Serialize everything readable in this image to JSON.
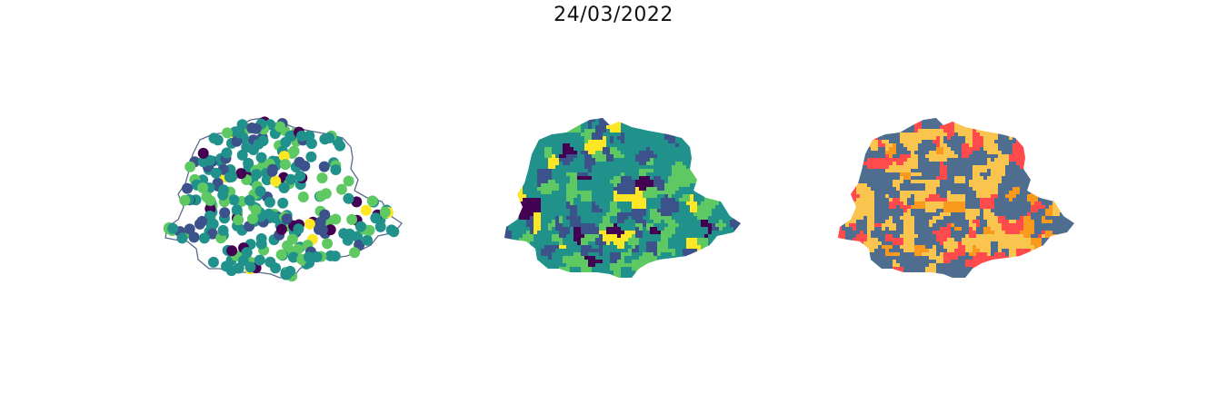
{
  "figure": {
    "title": "24/03/2022"
  },
  "colors": {
    "viridis": [
      "#440154",
      "#3b528b",
      "#21918c",
      "#5ec962",
      "#fde725"
    ],
    "outline": "#5a6a8a",
    "category_palette": [
      "#4f6d8f",
      "#f9c54e",
      "#ff4b4b",
      "#f99a1e"
    ]
  },
  "panels": [
    {
      "kind": "point-map",
      "style": "viridis-scatter"
    },
    {
      "kind": "choropleth",
      "style": "viridis-fill"
    },
    {
      "kind": "choropleth",
      "style": "categorical-fill"
    }
  ]
}
